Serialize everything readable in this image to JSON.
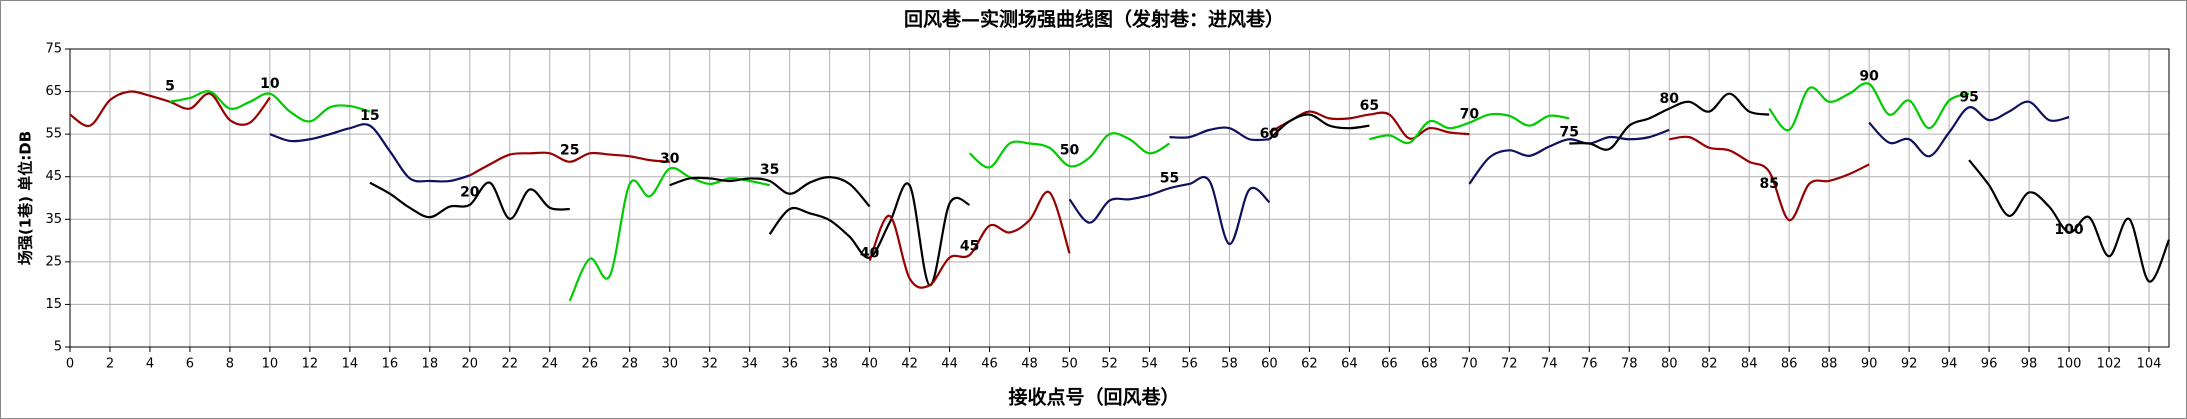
{
  "chart_data": {
    "type": "line",
    "title": "回风巷—实测场强曲线图（发射巷：进风巷）",
    "x_label": "接收点号（回风巷）",
    "y_label": "场强(1巷) 单位:DB",
    "xlim": [
      0,
      105
    ],
    "xticks": [
      0,
      2,
      4,
      6,
      8,
      10,
      12,
      14,
      16,
      18,
      20,
      22,
      24,
      26,
      28,
      30,
      32,
      34,
      36,
      38,
      40,
      42,
      44,
      46,
      48,
      50,
      52,
      54,
      56,
      58,
      60,
      62,
      64,
      66,
      68,
      70,
      72,
      74,
      76,
      78,
      80,
      82,
      84,
      86,
      88,
      90,
      92,
      94,
      96,
      98,
      100,
      102,
      104
    ],
    "ylim": [
      5,
      75
    ],
    "yticks": [
      5,
      15,
      25,
      35,
      45,
      55,
      65,
      75
    ],
    "grid": true,
    "series": [
      {
        "color": "#990000",
        "x": [
          0,
          1,
          2,
          3,
          4,
          5,
          6,
          7,
          8,
          9,
          10
        ],
        "values": [
          59.6,
          57,
          63,
          65,
          64,
          62.6,
          61,
          64.5,
          58.3,
          57.7,
          63.6
        ]
      },
      {
        "color": "#00cc00",
        "x": [
          5,
          6,
          7,
          8,
          9,
          10,
          11,
          12,
          13,
          14,
          15
        ],
        "values": [
          62.6,
          63.5,
          65,
          61,
          62.6,
          64.5,
          60.3,
          58,
          61.3,
          61.6,
          60.3
        ]
      },
      {
        "color": "#10105e",
        "x": [
          10,
          11,
          12,
          13,
          14,
          15,
          16,
          17,
          18,
          19,
          20
        ],
        "values": [
          55,
          53.4,
          53.8,
          55,
          56.4,
          57,
          51,
          44.6,
          44,
          44,
          45.3
        ]
      },
      {
        "color": "#000000",
        "x": [
          15,
          16,
          17,
          18,
          19,
          20,
          21,
          22,
          23,
          24,
          25
        ],
        "values": [
          43.6,
          41,
          37.7,
          35.5,
          38,
          38.4,
          43.6,
          35.1,
          42,
          37.7,
          37.4
        ]
      },
      {
        "color": "#990000",
        "x": [
          20,
          21,
          22,
          23,
          24,
          25,
          26,
          27,
          28,
          29,
          30
        ],
        "values": [
          45.3,
          47.9,
          50.2,
          50.5,
          50.5,
          48.5,
          50.5,
          50.2,
          49.8,
          48.9,
          48.5
        ]
      },
      {
        "color": "#00cc00",
        "x": [
          25,
          26,
          27,
          28,
          29,
          30,
          31,
          32,
          33,
          34,
          35
        ],
        "values": [
          15.8,
          25.7,
          21.7,
          43.3,
          40.4,
          46.9,
          44.9,
          43.3,
          44.6,
          44,
          43
        ]
      },
      {
        "color": "#000000",
        "x": [
          30,
          31,
          32,
          33,
          34,
          35,
          36,
          37,
          38,
          39,
          40
        ],
        "values": [
          43,
          44.6,
          44.6,
          44,
          44.6,
          44,
          41,
          43.6,
          44.9,
          43.3,
          38
        ]
      },
      {
        "color": "#000000",
        "x": [
          35,
          36,
          37,
          38,
          39,
          40,
          41,
          42,
          43,
          44,
          45
        ],
        "values": [
          31.5,
          37.4,
          36.4,
          34.8,
          30.9,
          26,
          34.2,
          43,
          19.5,
          38.7,
          38.4
        ]
      },
      {
        "color": "#990000",
        "x": [
          40,
          41,
          42,
          43,
          44,
          45,
          46,
          47,
          48,
          49,
          50
        ],
        "values": [
          25.3,
          35.8,
          21.1,
          19.5,
          26,
          26.6,
          33.5,
          31.9,
          34.8,
          41.3,
          27
        ]
      },
      {
        "color": "#00cc00",
        "x": [
          45,
          46,
          47,
          48,
          49,
          50,
          51,
          52,
          53,
          54,
          55
        ],
        "values": [
          50.5,
          47.2,
          52.8,
          52.8,
          51.8,
          47.5,
          49.5,
          55,
          53.8,
          50.5,
          52.8
        ]
      },
      {
        "color": "#10105e",
        "x": [
          50,
          51,
          52,
          53,
          54,
          55,
          56,
          57,
          58,
          59,
          60
        ],
        "values": [
          39.7,
          34.2,
          39.4,
          39.7,
          40.7,
          42.3,
          43.3,
          44,
          29.2,
          42,
          39
        ]
      },
      {
        "color": "#10105e",
        "x": [
          55,
          56,
          57,
          58,
          59,
          60
        ],
        "values": [
          54.3,
          54.3,
          56,
          56.4,
          53.8,
          53.8
        ]
      },
      {
        "color": "#990000",
        "x": [
          60,
          61,
          62,
          63,
          64,
          65,
          66,
          67,
          68,
          69,
          70
        ],
        "values": [
          55.4,
          58,
          60.3,
          58.7,
          58.7,
          59.6,
          59.6,
          54,
          56.4,
          55.4,
          55
        ]
      },
      {
        "color": "#000000",
        "x": [
          60,
          61,
          62,
          63,
          64,
          65
        ],
        "values": [
          53.8,
          58,
          59.6,
          57,
          56.4,
          57
        ]
      },
      {
        "color": "#00cc00",
        "x": [
          65,
          66,
          67,
          68,
          69,
          70,
          71,
          72,
          73,
          74,
          75
        ],
        "values": [
          53.8,
          54.7,
          53,
          58,
          56.4,
          57.7,
          59.6,
          59.3,
          57,
          59.3,
          58.7
        ]
      },
      {
        "color": "#10105e",
        "x": [
          70,
          71,
          72,
          73,
          74,
          75,
          76,
          77,
          78,
          79,
          80
        ],
        "values": [
          43.3,
          49.5,
          51.2,
          49.9,
          52.1,
          53.8,
          52.8,
          54.3,
          53.8,
          54.3,
          56
        ]
      },
      {
        "color": "#000000",
        "x": [
          75,
          76,
          77,
          78,
          79,
          80,
          81,
          82,
          83,
          84,
          85
        ],
        "values": [
          52.8,
          52.8,
          51.5,
          57,
          58.7,
          61,
          62.6,
          60.3,
          64.5,
          60.3,
          59.6
        ]
      },
      {
        "color": "#990000",
        "x": [
          80,
          81,
          82,
          83,
          84,
          85,
          86,
          87,
          88,
          89,
          90
        ],
        "values": [
          53.8,
          54.3,
          51.8,
          51.2,
          48.5,
          46.2,
          34.8,
          43.3,
          44,
          45.6,
          47.9
        ]
      },
      {
        "color": "#00cc00",
        "x": [
          85,
          86,
          87,
          88,
          89,
          90,
          91,
          92,
          93,
          94,
          95
        ],
        "values": [
          61,
          56,
          65.8,
          62.6,
          64.5,
          66.8,
          59.6,
          62.9,
          56.4,
          62.9,
          64.5
        ]
      },
      {
        "color": "#10105e",
        "x": [
          90,
          91,
          92,
          93,
          94,
          95,
          96,
          97,
          98,
          99,
          100
        ],
        "values": [
          57.7,
          53,
          53.8,
          49.8,
          55.4,
          61.3,
          58.3,
          60.3,
          62.6,
          58.3,
          59
        ]
      },
      {
        "color": "#000000",
        "x": [
          95,
          96,
          97,
          98,
          99,
          100,
          101,
          102,
          103,
          104,
          105
        ],
        "values": [
          48.9,
          43,
          35.8,
          41.3,
          38,
          31.9,
          35.5,
          26.3,
          35.1,
          20.4,
          30.2
        ]
      }
    ],
    "annotations": [
      {
        "text": "5",
        "x": 5,
        "y": 66.2
      },
      {
        "text": "10",
        "x": 10,
        "y": 66.8
      },
      {
        "text": "15",
        "x": 15,
        "y": 59.3
      },
      {
        "text": "20",
        "x": 20,
        "y": 41.3
      },
      {
        "text": "25",
        "x": 25,
        "y": 51.2
      },
      {
        "text": "30",
        "x": 30,
        "y": 49.2
      },
      {
        "text": "35",
        "x": 35,
        "y": 46.6
      },
      {
        "text": "40",
        "x": 40,
        "y": 27
      },
      {
        "text": "45",
        "x": 45,
        "y": 28.6
      },
      {
        "text": "50",
        "x": 50,
        "y": 51.2
      },
      {
        "text": "55",
        "x": 55,
        "y": 44.6
      },
      {
        "text": "60",
        "x": 60,
        "y": 55
      },
      {
        "text": "65",
        "x": 65,
        "y": 61.6
      },
      {
        "text": "70",
        "x": 70,
        "y": 59.6
      },
      {
        "text": "75",
        "x": 75,
        "y": 55.4
      },
      {
        "text": "80",
        "x": 80,
        "y": 63.2
      },
      {
        "text": "85",
        "x": 85,
        "y": 43.3
      },
      {
        "text": "90",
        "x": 90,
        "y": 68.5
      },
      {
        "text": "95",
        "x": 95,
        "y": 63.6
      },
      {
        "text": "100",
        "x": 100,
        "y": 32.5
      }
    ]
  }
}
